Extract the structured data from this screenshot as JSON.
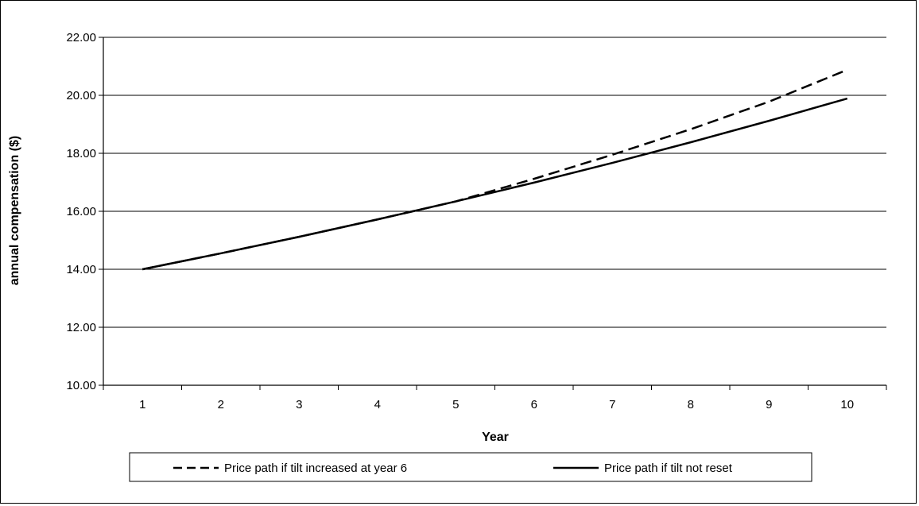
{
  "chart_data": {
    "type": "line",
    "title": "",
    "xlabel": "Year",
    "ylabel": "annual compensation ($)",
    "categories": [
      "1",
      "2",
      "3",
      "4",
      "5",
      "6",
      "7",
      "8",
      "9",
      "10"
    ],
    "ylim": [
      10.0,
      22.0
    ],
    "yticks": [
      "10.00",
      "12.00",
      "14.00",
      "16.00",
      "18.00",
      "20.00",
      "22.00"
    ],
    "grid": "horizontal major gridlines",
    "legend_position": "bottom",
    "series": [
      {
        "name": "Price path if tilt increased at year 6",
        "style": "dashed",
        "color": "#000000",
        "values": [
          14.0,
          14.55,
          15.12,
          15.72,
          16.34,
          17.12,
          17.95,
          18.83,
          19.78,
          20.88
        ]
      },
      {
        "name": "Price path if tilt not reset",
        "style": "solid",
        "color": "#000000",
        "values": [
          14.0,
          14.55,
          15.12,
          15.72,
          16.34,
          16.99,
          17.67,
          18.38,
          19.12,
          19.89
        ]
      }
    ]
  }
}
